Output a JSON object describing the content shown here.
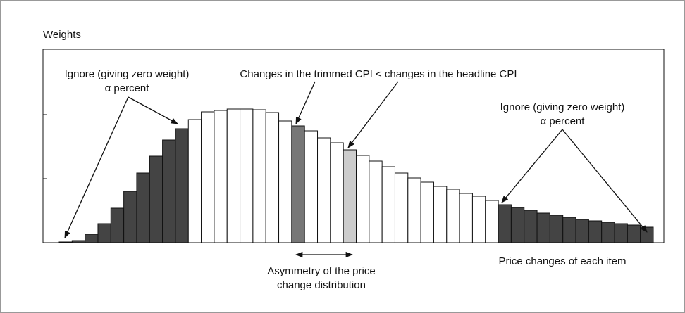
{
  "chart_data": {
    "type": "bar",
    "y_label": "Weights",
    "x_label": "Price changes of each item",
    "annotations": {
      "left_1": "Ignore (giving zero weight)",
      "left_2": "α percent",
      "middle": "Changes in the trimmed CPI < changes in the headline CPI",
      "right_1": "Ignore (giving zero weight)",
      "right_2": "α percent",
      "asym_1": "Asymmetry of the price",
      "asym_2": "change distribution"
    },
    "values": [
      1,
      3,
      12,
      27,
      49,
      73,
      99,
      123,
      146,
      162,
      175,
      186,
      188,
      190,
      190,
      189,
      185,
      173,
      166,
      159,
      149,
      142,
      132,
      124,
      116,
      108,
      99,
      92,
      86,
      80,
      76,
      70,
      66,
      60,
      54,
      50,
      46,
      42,
      39,
      36,
      33,
      31,
      29,
      27,
      25,
      22
    ],
    "colors": [
      "#444",
      "#444",
      "#444",
      "#444",
      "#444",
      "#444",
      "#444",
      "#444",
      "#444",
      "#444",
      "#fff",
      "#fff",
      "#fff",
      "#fff",
      "#fff",
      "#fff",
      "#fff",
      "#fff",
      "#777",
      "#fff",
      "#fff",
      "#fff",
      "#ccc",
      "#fff",
      "#fff",
      "#fff",
      "#fff",
      "#fff",
      "#fff",
      "#fff",
      "#fff",
      "#fff",
      "#fff",
      "#fff",
      "#444",
      "#444",
      "#444",
      "#444",
      "#444",
      "#444",
      "#444",
      "#444",
      "#444",
      "#444",
      "#444",
      "#444"
    ],
    "ylim": [
      0,
      275
    ],
    "yticks": [
      91,
      182
    ]
  }
}
